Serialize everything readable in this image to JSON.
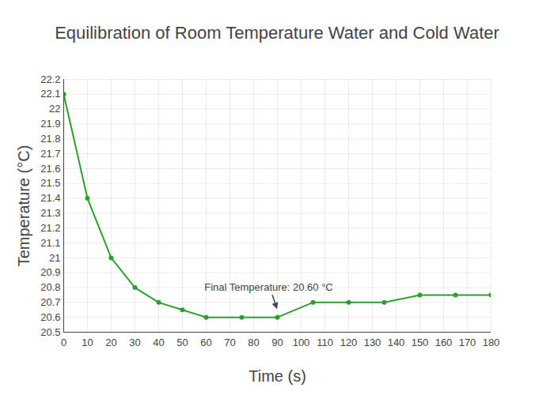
{
  "chart_data": {
    "type": "line",
    "title": "Equilibration of Room Temperature Water and Cold Water",
    "x_label": "Time (s)",
    "y_label": "Temperature (°C)",
    "x": [
      0,
      10,
      20,
      30,
      40,
      50,
      60,
      75,
      90,
      105,
      120,
      135,
      150,
      165,
      180
    ],
    "values": [
      22.1,
      21.4,
      21.0,
      20.8,
      20.7,
      20.65,
      20.6,
      20.6,
      20.6,
      20.7,
      20.7,
      20.7,
      20.75,
      20.75,
      20.75
    ],
    "color": "#2ca02c",
    "marker": "circle",
    "xlim": [
      0,
      180
    ],
    "xticks": [
      0,
      10,
      20,
      30,
      40,
      50,
      60,
      70,
      80,
      90,
      100,
      110,
      120,
      130,
      140,
      150,
      160,
      170,
      180
    ],
    "ylim": [
      20.5,
      22.2
    ],
    "yticks": [
      20.5,
      20.6,
      20.7,
      20.8,
      20.9,
      21,
      21.1,
      21.2,
      21.3,
      21.4,
      21.5,
      21.6,
      21.7,
      21.8,
      21.9,
      22,
      22.1,
      22.2
    ],
    "grid": true,
    "annotations": [
      {
        "text": "Final Temperature: 20.60 °C",
        "x": 90,
        "y": 20.6
      }
    ]
  }
}
